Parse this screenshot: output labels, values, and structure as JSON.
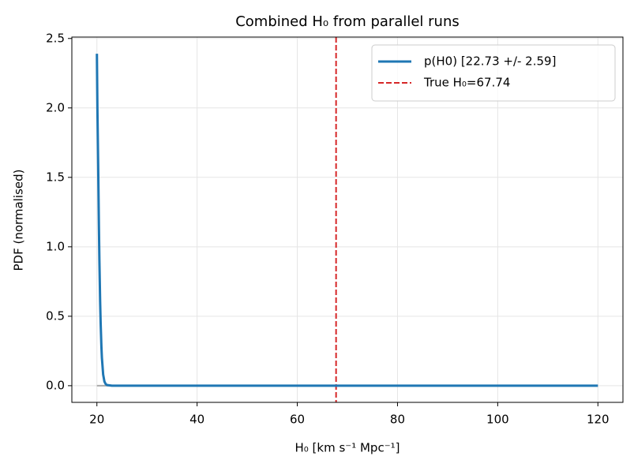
{
  "chart_data": {
    "type": "line",
    "title": "Combined H₀ from parallel runs",
    "xlabel": "H₀ [km s⁻¹ Mpc⁻¹]",
    "ylabel": "PDF (normalised)",
    "series": [
      {
        "name": "p(H0) [22.73 +/- 2.59]",
        "color": "#1f77b4",
        "x": [
          20,
          20.1,
          20.25,
          20.4,
          20.5,
          20.65,
          20.75,
          20.9,
          21,
          21.25,
          21.5,
          21.75,
          22,
          23,
          30,
          60,
          120
        ],
        "values": [
          2.39,
          2.0,
          1.6,
          1.15,
          0.9,
          0.6,
          0.45,
          0.28,
          0.2,
          0.08,
          0.03,
          0.012,
          0.005,
          0,
          0,
          0,
          0
        ]
      }
    ],
    "baseline": {
      "color": "#aaaaaa",
      "x": [
        20,
        120
      ],
      "values": [
        0,
        0
      ]
    },
    "vline": {
      "name": "True H₀=67.74",
      "x": 67.74,
      "color": "#d62728"
    },
    "xlim": [
      15,
      125
    ],
    "ylim": [
      -0.12,
      2.51
    ],
    "xticks": [
      20,
      40,
      60,
      80,
      100,
      120
    ],
    "yticks": [
      {
        "value": 0,
        "label": "0.0"
      },
      0.5,
      {
        "value": 1,
        "label": "1.0"
      },
      1.5,
      {
        "value": 2,
        "label": "2.0"
      },
      2.5
    ],
    "grid": true,
    "legend": "upper right"
  }
}
